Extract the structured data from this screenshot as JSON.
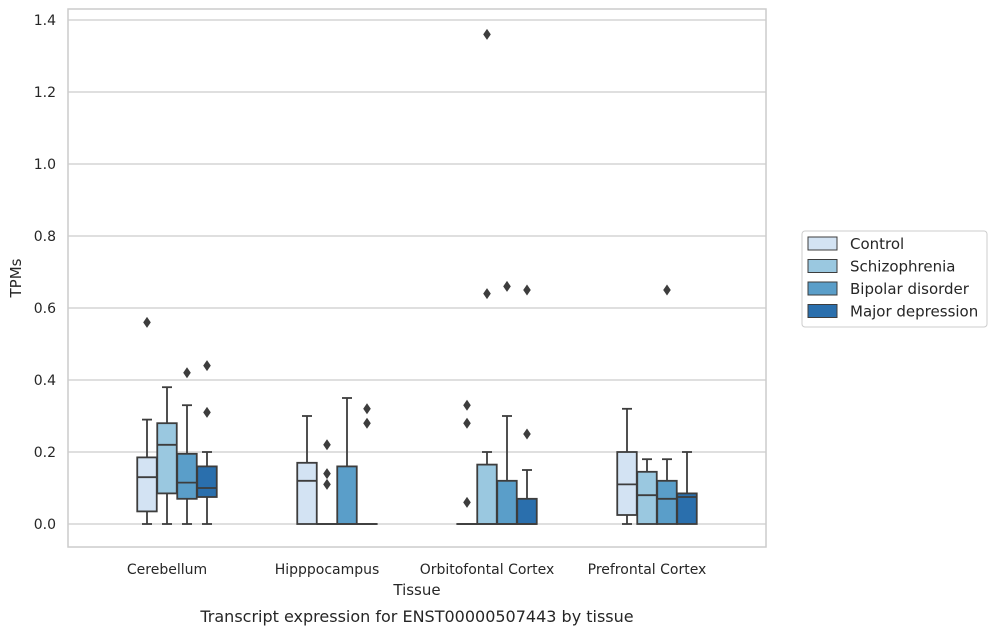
{
  "chart_data": {
    "type": "box",
    "title": "",
    "caption": "Transcript expression for ENST00000507443 by tissue",
    "xlabel": "Tissue",
    "ylabel": "TPMs",
    "ylim": [
      -0.066,
      1.43
    ],
    "yticks": [
      "0.0",
      "0.2",
      "0.4",
      "0.6",
      "0.8",
      "1.0",
      "1.2",
      "1.4"
    ],
    "grid": "horizontal",
    "legend_position": "right",
    "categories": [
      "Cerebellum",
      "Hipppocampus",
      "Orbitofontal Cortex",
      "Prefrontal Cortex"
    ],
    "series": [
      {
        "name": "Control",
        "color": "#d3e3f3",
        "boxes": [
          {
            "whisker_low": 0.0,
            "q1": 0.035,
            "median": 0.13,
            "q3": 0.185,
            "whisker_high": 0.29,
            "outliers": [
              0.56
            ]
          },
          {
            "whisker_low": 0.0,
            "q1": 0.0,
            "median": 0.12,
            "q3": 0.17,
            "whisker_high": 0.3,
            "outliers": []
          },
          {
            "whisker_low": 0.0,
            "q1": 0.0,
            "median": 0.0,
            "q3": 0.0,
            "whisker_high": 0.0,
            "outliers": [
              0.06,
              0.28,
              0.33
            ]
          },
          {
            "whisker_low": 0.0,
            "q1": 0.025,
            "median": 0.11,
            "q3": 0.2,
            "whisker_high": 0.32,
            "outliers": []
          }
        ]
      },
      {
        "name": "Schizophrenia",
        "color": "#9ac8e0",
        "boxes": [
          {
            "whisker_low": 0.0,
            "q1": 0.085,
            "median": 0.22,
            "q3": 0.28,
            "whisker_high": 0.38,
            "outliers": []
          },
          {
            "whisker_low": 0.0,
            "q1": 0.0,
            "median": 0.0,
            "q3": 0.0,
            "whisker_high": 0.0,
            "outliers": [
              0.11,
              0.14,
              0.22
            ]
          },
          {
            "whisker_low": 0.0,
            "q1": 0.0,
            "median": 0.0,
            "q3": 0.165,
            "whisker_high": 0.2,
            "outliers": [
              0.64,
              1.36
            ]
          },
          {
            "whisker_low": 0.0,
            "q1": 0.0,
            "median": 0.08,
            "q3": 0.145,
            "whisker_high": 0.18,
            "outliers": []
          }
        ]
      },
      {
        "name": "Bipolar disorder",
        "color": "#5a9ec9",
        "boxes": [
          {
            "whisker_low": 0.0,
            "q1": 0.07,
            "median": 0.115,
            "q3": 0.195,
            "whisker_high": 0.33,
            "outliers": [
              0.42
            ]
          },
          {
            "whisker_low": 0.0,
            "q1": 0.0,
            "median": 0.0,
            "q3": 0.16,
            "whisker_high": 0.35,
            "outliers": []
          },
          {
            "whisker_low": 0.0,
            "q1": 0.0,
            "median": 0.0,
            "q3": 0.12,
            "whisker_high": 0.3,
            "outliers": [
              0.66
            ]
          },
          {
            "whisker_low": 0.0,
            "q1": 0.0,
            "median": 0.07,
            "q3": 0.12,
            "whisker_high": 0.18,
            "outliers": [
              0.65
            ]
          }
        ]
      },
      {
        "name": "Major depression",
        "color": "#2a6fad",
        "boxes": [
          {
            "whisker_low": 0.0,
            "q1": 0.075,
            "median": 0.1,
            "q3": 0.16,
            "whisker_high": 0.2,
            "outliers": [
              0.31,
              0.44
            ]
          },
          {
            "whisker_low": 0.0,
            "q1": 0.0,
            "median": 0.0,
            "q3": 0.0,
            "whisker_high": 0.0,
            "outliers": [
              0.28,
              0.32
            ]
          },
          {
            "whisker_low": 0.0,
            "q1": 0.0,
            "median": 0.0,
            "q3": 0.07,
            "whisker_high": 0.15,
            "outliers": [
              0.25,
              0.65
            ]
          },
          {
            "whisker_low": 0.0,
            "q1": 0.0,
            "median": 0.075,
            "q3": 0.085,
            "whisker_high": 0.2,
            "outliers": []
          }
        ]
      }
    ]
  }
}
